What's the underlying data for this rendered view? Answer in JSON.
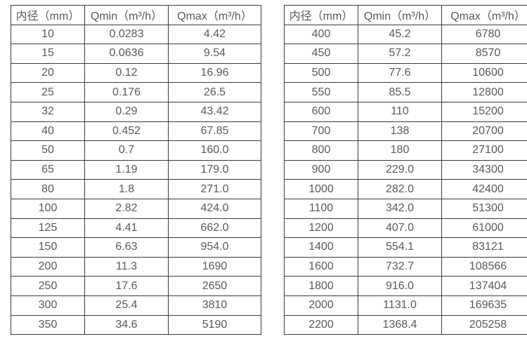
{
  "page": {
    "background": "#ffffff",
    "text_color": "#595959",
    "border_color": "#3b3b3b"
  },
  "tables": [
    {
      "name": "flow-rate-table-small-diameters",
      "headers": [
        "内径（mm）",
        "Qmin（m³/h）",
        "Qmax（m³/h）"
      ],
      "rows": [
        [
          "10",
          "0.0283",
          "4.42"
        ],
        [
          "15",
          "0.0636",
          "9.54"
        ],
        [
          "20",
          "0.12",
          "16.96"
        ],
        [
          "25",
          "0.176",
          "26.5"
        ],
        [
          "32",
          "0.29",
          "43.42"
        ],
        [
          "40",
          "0.452",
          "67.85"
        ],
        [
          "50",
          "0.7",
          "160.0"
        ],
        [
          "65",
          "1.19",
          "179.0"
        ],
        [
          "80",
          "1.8",
          "271.0"
        ],
        [
          "100",
          "2.82",
          "424.0"
        ],
        [
          "125",
          "4.41",
          "662.0"
        ],
        [
          "150",
          "6.63",
          "954.0"
        ],
        [
          "200",
          "11.3",
          "1690"
        ],
        [
          "250",
          "17.6",
          "2650"
        ],
        [
          "300",
          "25.4",
          "3810"
        ],
        [
          "350",
          "34.6",
          "5190"
        ]
      ]
    },
    {
      "name": "flow-rate-table-large-diameters",
      "headers": [
        "内径（mm）",
        "Qmin（m³/h）",
        "Qmax（m³/h）"
      ],
      "rows": [
        [
          "400",
          "45.2",
          "6780"
        ],
        [
          "450",
          "57.2",
          "8570"
        ],
        [
          "500",
          "77.6",
          "10600"
        ],
        [
          "550",
          "85.5",
          "12800"
        ],
        [
          "600",
          "110",
          "15200"
        ],
        [
          "700",
          "138",
          "20700"
        ],
        [
          "800",
          "180",
          "27100"
        ],
        [
          "900",
          "229.0",
          "34300"
        ],
        [
          "1000",
          "282.0",
          "42400"
        ],
        [
          "1100",
          "342.0",
          "51300"
        ],
        [
          "1200",
          "407.0",
          "61000"
        ],
        [
          "1400",
          "554.1",
          "83121"
        ],
        [
          "1600",
          "732.7",
          "108566"
        ],
        [
          "1800",
          "916.0",
          "137404"
        ],
        [
          "2000",
          "1131.0",
          "169635"
        ],
        [
          "2200",
          "1368.4",
          "205258"
        ]
      ]
    }
  ]
}
